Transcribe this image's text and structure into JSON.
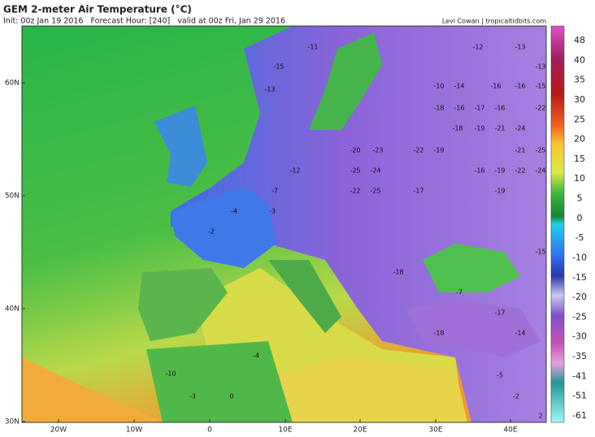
{
  "header": {
    "title": "GEM 2-meter Air Temperature (°C)",
    "subtitle": "Init: 00z Jan 19 2016   Forecast Hour: [240]   valid at 00z Fri, Jan 29 2016",
    "credit": "Levi Cowan | tropicaltidbits.com"
  },
  "map": {
    "lat_labels": [
      "60N",
      "50N",
      "40N",
      "30N"
    ],
    "lon_labels": [
      "20W",
      "10W",
      "0",
      "10E",
      "20E",
      "30E",
      "40E"
    ],
    "value_labels": [
      "-11",
      "-15",
      "-13",
      "-12",
      "-13",
      "-13",
      "-10",
      "-14",
      "-16",
      "-16",
      "-15",
      "-18",
      "-16",
      "-17",
      "-16",
      "-22",
      "-18",
      "-19",
      "-21",
      "-24",
      "-20",
      "-23",
      "-22",
      "-19",
      "-21",
      "-25",
      "-25",
      "-24",
      "-16",
      "-19",
      "-22",
      "-24",
      "-22",
      "-25",
      "-17",
      "-19",
      "-12",
      "-7",
      "-4",
      "-2",
      "-3",
      "-18",
      "-15",
      "-7",
      "-17",
      "-18",
      "-14",
      "-10",
      "-4",
      "-3",
      "0",
      "-2",
      "-5",
      "2"
    ]
  },
  "colorbar": {
    "labels": [
      "48",
      "40",
      "35",
      "30",
      "25",
      "20",
      "15",
      "10",
      "5",
      "0",
      "-5",
      "-10",
      "-15",
      "-20",
      "-25",
      "-30",
      "-35",
      "-41",
      "-51",
      "-61"
    ]
  }
}
